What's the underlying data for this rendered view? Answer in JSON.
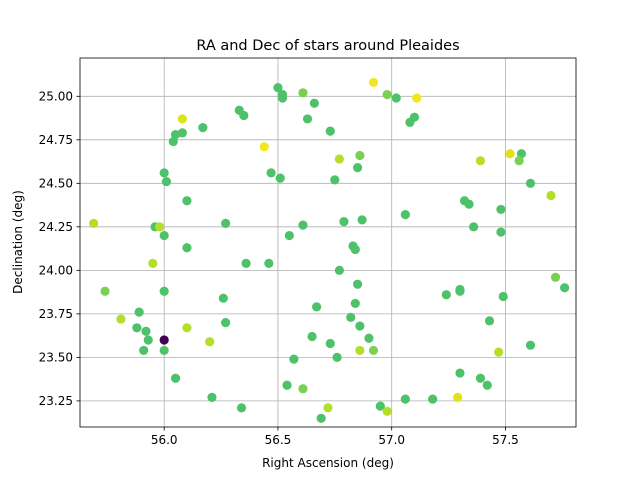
{
  "chart_data": {
    "type": "scatter",
    "title": "RA and Dec of stars around Pleaides",
    "xlabel": "Right Ascension (deg)",
    "ylabel": "Declination (deg)",
    "xlim": [
      55.63,
      57.81
    ],
    "ylim": [
      23.1,
      25.22
    ],
    "xticks": [
      56.0,
      56.5,
      57.0,
      57.5
    ],
    "xtick_labels": [
      "56.0",
      "56.5",
      "57.0",
      "57.5"
    ],
    "yticks": [
      23.25,
      23.5,
      23.75,
      24.0,
      24.25,
      24.5,
      24.75,
      25.0
    ],
    "ytick_labels": [
      "23.25",
      "23.50",
      "23.75",
      "24.00",
      "24.25",
      "24.50",
      "24.75",
      "25.00"
    ],
    "grid": true,
    "colors": {
      "green": "#4ec26a",
      "yellowgreen": "#b5de2b",
      "yellow": "#f3e620",
      "dark": "#440154"
    },
    "points": [
      {
        "x": 56.0,
        "y": 23.6,
        "color": "#440154"
      },
      {
        "x": 56.5,
        "y": 25.05,
        "color": "#4ec26a"
      },
      {
        "x": 56.52,
        "y": 25.01,
        "color": "#4ec26a"
      },
      {
        "x": 56.52,
        "y": 24.99,
        "color": "#4ec26a"
      },
      {
        "x": 56.61,
        "y": 25.02,
        "color": "#7ad151"
      },
      {
        "x": 56.66,
        "y": 24.96,
        "color": "#4ec26a"
      },
      {
        "x": 56.92,
        "y": 25.08,
        "color": "#f3e620"
      },
      {
        "x": 56.98,
        "y": 25.01,
        "color": "#7ad151"
      },
      {
        "x": 57.02,
        "y": 24.99,
        "color": "#4ec26a"
      },
      {
        "x": 57.11,
        "y": 24.99,
        "color": "#f3e620"
      },
      {
        "x": 57.1,
        "y": 24.88,
        "color": "#4ec26a"
      },
      {
        "x": 57.08,
        "y": 24.85,
        "color": "#4ec26a"
      },
      {
        "x": 56.33,
        "y": 24.92,
        "color": "#4ec26a"
      },
      {
        "x": 56.35,
        "y": 24.89,
        "color": "#4ec26a"
      },
      {
        "x": 56.63,
        "y": 24.87,
        "color": "#4ec26a"
      },
      {
        "x": 56.73,
        "y": 24.8,
        "color": "#4ec26a"
      },
      {
        "x": 56.08,
        "y": 24.87,
        "color": "#dde318"
      },
      {
        "x": 56.17,
        "y": 24.82,
        "color": "#4ec26a"
      },
      {
        "x": 56.08,
        "y": 24.79,
        "color": "#4ec26a"
      },
      {
        "x": 56.05,
        "y": 24.78,
        "color": "#4ec26a"
      },
      {
        "x": 56.04,
        "y": 24.74,
        "color": "#4ec26a"
      },
      {
        "x": 56.44,
        "y": 24.71,
        "color": "#f3e620"
      },
      {
        "x": 56.77,
        "y": 24.64,
        "color": "#b5de2b"
      },
      {
        "x": 56.86,
        "y": 24.66,
        "color": "#7ad151"
      },
      {
        "x": 57.52,
        "y": 24.67,
        "color": "#dde318"
      },
      {
        "x": 57.57,
        "y": 24.67,
        "color": "#4ec26a"
      },
      {
        "x": 57.56,
        "y": 24.63,
        "color": "#7ad151"
      },
      {
        "x": 57.39,
        "y": 24.63,
        "color": "#b5de2b"
      },
      {
        "x": 56.85,
        "y": 24.59,
        "color": "#4ec26a"
      },
      {
        "x": 56.0,
        "y": 24.56,
        "color": "#4ec26a"
      },
      {
        "x": 56.01,
        "y": 24.51,
        "color": "#4ec26a"
      },
      {
        "x": 56.47,
        "y": 24.56,
        "color": "#4ec26a"
      },
      {
        "x": 56.51,
        "y": 24.53,
        "color": "#4ec26a"
      },
      {
        "x": 56.75,
        "y": 24.52,
        "color": "#4ec26a"
      },
      {
        "x": 57.61,
        "y": 24.5,
        "color": "#4ec26a"
      },
      {
        "x": 57.7,
        "y": 24.43,
        "color": "#b5de2b"
      },
      {
        "x": 56.1,
        "y": 24.4,
        "color": "#4ec26a"
      },
      {
        "x": 57.32,
        "y": 24.4,
        "color": "#4ec26a"
      },
      {
        "x": 57.34,
        "y": 24.38,
        "color": "#4ec26a"
      },
      {
        "x": 57.48,
        "y": 24.35,
        "color": "#4ec26a"
      },
      {
        "x": 57.06,
        "y": 24.32,
        "color": "#4ec26a"
      },
      {
        "x": 56.87,
        "y": 24.29,
        "color": "#4ec26a"
      },
      {
        "x": 56.79,
        "y": 24.28,
        "color": "#4ec26a"
      },
      {
        "x": 55.69,
        "y": 24.27,
        "color": "#b5de2b"
      },
      {
        "x": 56.27,
        "y": 24.27,
        "color": "#4ec26a"
      },
      {
        "x": 56.61,
        "y": 24.26,
        "color": "#4ec26a"
      },
      {
        "x": 55.96,
        "y": 24.25,
        "color": "#4ec26a"
      },
      {
        "x": 55.98,
        "y": 24.25,
        "color": "#b5de2b"
      },
      {
        "x": 57.36,
        "y": 24.25,
        "color": "#4ec26a"
      },
      {
        "x": 57.48,
        "y": 24.22,
        "color": "#4ec26a"
      },
      {
        "x": 56.0,
        "y": 24.2,
        "color": "#4ec26a"
      },
      {
        "x": 56.55,
        "y": 24.2,
        "color": "#4ec26a"
      },
      {
        "x": 56.83,
        "y": 24.14,
        "color": "#4ec26a"
      },
      {
        "x": 56.84,
        "y": 24.12,
        "color": "#4ec26a"
      },
      {
        "x": 56.1,
        "y": 24.13,
        "color": "#4ec26a"
      },
      {
        "x": 55.95,
        "y": 24.04,
        "color": "#b5de2b"
      },
      {
        "x": 56.36,
        "y": 24.04,
        "color": "#4ec26a"
      },
      {
        "x": 56.46,
        "y": 24.04,
        "color": "#4ec26a"
      },
      {
        "x": 56.77,
        "y": 24.0,
        "color": "#4ec26a"
      },
      {
        "x": 57.72,
        "y": 23.96,
        "color": "#7ad151"
      },
      {
        "x": 57.76,
        "y": 23.9,
        "color": "#4ec26a"
      },
      {
        "x": 56.85,
        "y": 23.92,
        "color": "#4ec26a"
      },
      {
        "x": 55.74,
        "y": 23.88,
        "color": "#7ad151"
      },
      {
        "x": 56.0,
        "y": 23.88,
        "color": "#4ec26a"
      },
      {
        "x": 57.3,
        "y": 23.89,
        "color": "#4ec26a"
      },
      {
        "x": 57.3,
        "y": 23.88,
        "color": "#4ec26a"
      },
      {
        "x": 57.24,
        "y": 23.86,
        "color": "#4ec26a"
      },
      {
        "x": 57.49,
        "y": 23.85,
        "color": "#4ec26a"
      },
      {
        "x": 56.26,
        "y": 23.84,
        "color": "#4ec26a"
      },
      {
        "x": 56.84,
        "y": 23.81,
        "color": "#4ec26a"
      },
      {
        "x": 56.67,
        "y": 23.79,
        "color": "#4ec26a"
      },
      {
        "x": 55.89,
        "y": 23.76,
        "color": "#4ec26a"
      },
      {
        "x": 55.81,
        "y": 23.72,
        "color": "#b5de2b"
      },
      {
        "x": 56.82,
        "y": 23.73,
        "color": "#4ec26a"
      },
      {
        "x": 57.43,
        "y": 23.71,
        "color": "#4ec26a"
      },
      {
        "x": 56.27,
        "y": 23.7,
        "color": "#4ec26a"
      },
      {
        "x": 56.86,
        "y": 23.68,
        "color": "#4ec26a"
      },
      {
        "x": 55.88,
        "y": 23.67,
        "color": "#4ec26a"
      },
      {
        "x": 56.1,
        "y": 23.67,
        "color": "#b5de2b"
      },
      {
        "x": 55.92,
        "y": 23.65,
        "color": "#4ec26a"
      },
      {
        "x": 56.65,
        "y": 23.62,
        "color": "#4ec26a"
      },
      {
        "x": 56.9,
        "y": 23.61,
        "color": "#4ec26a"
      },
      {
        "x": 55.93,
        "y": 23.6,
        "color": "#4ec26a"
      },
      {
        "x": 56.2,
        "y": 23.59,
        "color": "#b5de2b"
      },
      {
        "x": 56.73,
        "y": 23.58,
        "color": "#4ec26a"
      },
      {
        "x": 57.61,
        "y": 23.57,
        "color": "#4ec26a"
      },
      {
        "x": 55.91,
        "y": 23.54,
        "color": "#4ec26a"
      },
      {
        "x": 56.0,
        "y": 23.54,
        "color": "#4ec26a"
      },
      {
        "x": 56.86,
        "y": 23.54,
        "color": "#b5de2b"
      },
      {
        "x": 56.92,
        "y": 23.54,
        "color": "#7ad151"
      },
      {
        "x": 57.47,
        "y": 23.53,
        "color": "#b5de2b"
      },
      {
        "x": 56.76,
        "y": 23.5,
        "color": "#4ec26a"
      },
      {
        "x": 56.57,
        "y": 23.49,
        "color": "#4ec26a"
      },
      {
        "x": 57.3,
        "y": 23.41,
        "color": "#4ec26a"
      },
      {
        "x": 56.05,
        "y": 23.38,
        "color": "#4ec26a"
      },
      {
        "x": 57.39,
        "y": 23.38,
        "color": "#4ec26a"
      },
      {
        "x": 57.42,
        "y": 23.34,
        "color": "#4ec26a"
      },
      {
        "x": 56.54,
        "y": 23.34,
        "color": "#4ec26a"
      },
      {
        "x": 56.61,
        "y": 23.32,
        "color": "#7ad151"
      },
      {
        "x": 56.21,
        "y": 23.27,
        "color": "#4ec26a"
      },
      {
        "x": 57.29,
        "y": 23.27,
        "color": "#dde318"
      },
      {
        "x": 57.06,
        "y": 23.26,
        "color": "#4ec26a"
      },
      {
        "x": 57.18,
        "y": 23.26,
        "color": "#4ec26a"
      },
      {
        "x": 56.95,
        "y": 23.22,
        "color": "#4ec26a"
      },
      {
        "x": 56.72,
        "y": 23.21,
        "color": "#b5de2b"
      },
      {
        "x": 56.34,
        "y": 23.21,
        "color": "#4ec26a"
      },
      {
        "x": 56.98,
        "y": 23.19,
        "color": "#b5de2b"
      },
      {
        "x": 56.69,
        "y": 23.15,
        "color": "#4ec26a"
      }
    ]
  }
}
